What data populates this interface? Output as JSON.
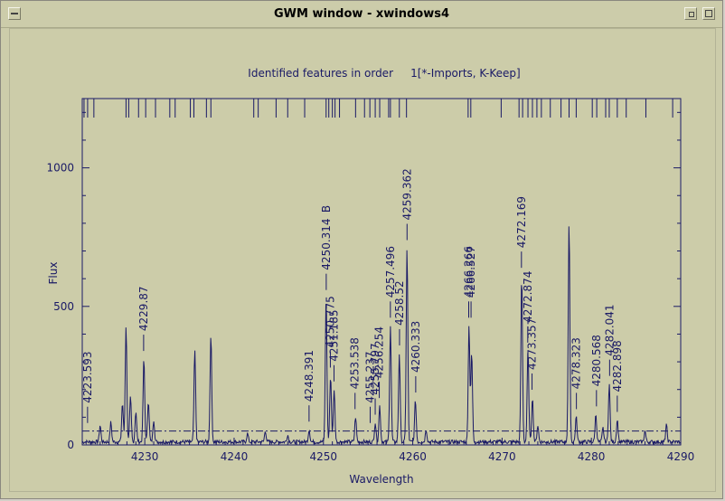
{
  "window": {
    "title": "GWM window - xwindows4",
    "icons": [
      "window-menu-icon",
      "minimize-icon",
      "maximize-icon"
    ]
  },
  "colors": {
    "ink": "#1a1a66",
    "background": "#cccca9"
  },
  "chart_data": {
    "type": "line",
    "title": "Identified features in order     1[*-Imports, K-Keep]",
    "xlabel": "Wavelength",
    "ylabel": "Flux",
    "xlim": [
      4223,
      4290
    ],
    "ylim": [
      0,
      1250
    ],
    "xticks": [
      4230,
      4240,
      4250,
      4260,
      4270,
      4280,
      4290
    ],
    "yticks": [
      0,
      500,
      1000
    ],
    "threshold": 50,
    "peaks": [
      [
        4225.0,
        60
      ],
      [
        4226.2,
        70
      ],
      [
        4227.5,
        140
      ],
      [
        4227.9,
        420
      ],
      [
        4228.4,
        160
      ],
      [
        4229.0,
        110
      ],
      [
        4229.9,
        300
      ],
      [
        4230.4,
        150
      ],
      [
        4231.0,
        80
      ],
      [
        4235.6,
        330
      ],
      [
        4237.4,
        390
      ],
      [
        4241.5,
        30
      ],
      [
        4243.5,
        40
      ],
      [
        4246.0,
        25
      ],
      [
        4248.4,
        45
      ],
      [
        4250.3,
        520
      ],
      [
        4250.8,
        240
      ],
      [
        4251.2,
        190
      ],
      [
        4253.6,
        90
      ],
      [
        4255.8,
        70
      ],
      [
        4256.3,
        130
      ],
      [
        4257.5,
        420
      ],
      [
        4258.5,
        320
      ],
      [
        4259.36,
        700
      ],
      [
        4260.3,
        150
      ],
      [
        4261.5,
        45
      ],
      [
        4266.3,
        420
      ],
      [
        4266.6,
        320
      ],
      [
        4272.2,
        600
      ],
      [
        4272.9,
        330
      ],
      [
        4273.4,
        160
      ],
      [
        4274.0,
        60
      ],
      [
        4277.5,
        790
      ],
      [
        4278.3,
        90
      ],
      [
        4280.5,
        100
      ],
      [
        4281.3,
        50
      ],
      [
        4282.0,
        210
      ],
      [
        4282.9,
        80
      ],
      [
        4286.0,
        40
      ],
      [
        4288.4,
        60
      ]
    ],
    "line_labels": [
      {
        "text": "4223.593",
        "wavelength": 4223.593
      },
      {
        "text": "4229.87",
        "wavelength": 4229.87
      },
      {
        "text": "4248.391",
        "wavelength": 4248.391
      },
      {
        "text": "4250.314",
        "wavelength": 4250.314,
        "flag": "B"
      },
      {
        "text": "4250.775",
        "wavelength": 4250.775
      },
      {
        "text": "4251.185",
        "wavelength": 4251.185
      },
      {
        "text": "4253.538",
        "wavelength": 4253.538
      },
      {
        "text": "4255.237",
        "wavelength": 4255.237
      },
      {
        "text": "4255.797",
        "wavelength": 4255.797
      },
      {
        "text": "4256.254",
        "wavelength": 4256.254
      },
      {
        "text": "4257.496",
        "wavelength": 4257.496
      },
      {
        "text": "4258.52",
        "wavelength": 4258.52
      },
      {
        "text": "4259.362",
        "wavelength": 4259.362
      },
      {
        "text": "4260.333",
        "wavelength": 4260.333
      },
      {
        "text": "4266.266",
        "wavelength": 4266.266
      },
      {
        "text": "4266.527",
        "wavelength": 4266.527
      },
      {
        "text": "4272.169",
        "wavelength": 4272.169
      },
      {
        "text": "4272.874",
        "wavelength": 4272.874
      },
      {
        "text": "4273.357",
        "wavelength": 4273.357
      },
      {
        "text": "4278.323",
        "wavelength": 4278.323
      },
      {
        "text": "4280.568",
        "wavelength": 4280.568
      },
      {
        "text": "4282.041",
        "wavelength": 4282.041
      },
      {
        "text": "4282.898",
        "wavelength": 4282.898
      }
    ],
    "catalogue_lines": [
      4223.2,
      4223.6,
      4224.3,
      4227.9,
      4228.2,
      4229.3,
      4230.1,
      4231.2,
      4232.8,
      4233.4,
      4235.1,
      4235.5,
      4236.9,
      4237.4,
      4242.2,
      4242.7,
      4244.7,
      4246.0,
      4247.9,
      4250.3,
      4250.6,
      4251.0,
      4251.3,
      4251.8,
      4253.6,
      4254.6,
      4255.2,
      4255.8,
      4256.3,
      4257.3,
      4257.5,
      4258.5,
      4259.3,
      4266.2,
      4266.5,
      4269.9,
      4271.9,
      4272.3,
      4272.9,
      4273.4,
      4273.9,
      4274.4,
      4275.4,
      4276.6,
      4277.5,
      4278.3,
      4280.1,
      4280.6,
      4281.6,
      4282.0,
      4282.9,
      4283.9,
      4286.1,
      4289.1
    ]
  }
}
